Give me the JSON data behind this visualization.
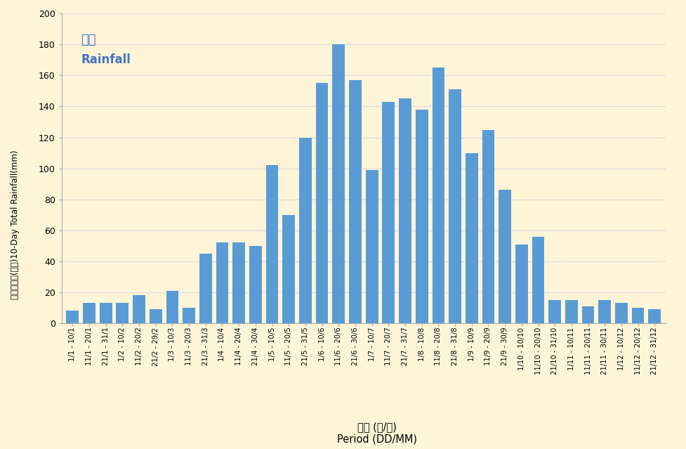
{
  "categories": [
    "1/1 - 10/1",
    "11/1 - 20/1",
    "21/1 - 31/1",
    "1/2 - 10/2",
    "11/2 - 20/2",
    "21/2 - 29/2",
    "1/3 - 10/3",
    "11/3 - 20/3",
    "21/3 - 31/3",
    "1/4 - 10/4",
    "11/4 - 20/4",
    "21/4 - 30/4",
    "1/5 - 10/5",
    "11/5 - 20/5",
    "21/5 - 31/5",
    "1/6 - 10/6",
    "11/6 - 20/6",
    "21/6 - 30/6",
    "1/7 - 10/7",
    "11/7 - 20/7",
    "21/7 - 31/7",
    "1/8 - 10/8",
    "11/8 - 20/8",
    "21/8 - 31/8",
    "1/9 - 10/9",
    "11/9 - 20/9",
    "21/9 - 30/9",
    "1/10 - 10/10",
    "11/10 - 20/10",
    "21/10 - 31/10",
    "1/11 - 10/11",
    "11/11 - 20/11",
    "21/11 - 30/11",
    "1/12 - 10/12",
    "11/12 - 20/12",
    "21/12 - 31/12"
  ],
  "values": [
    8,
    13,
    13,
    13,
    18,
    9,
    21,
    10,
    45,
    52,
    52,
    50,
    102,
    70,
    120,
    155,
    180,
    157,
    99,
    143,
    145,
    138,
    165,
    151,
    110,
    125,
    86,
    51,
    56,
    15,
    15,
    11,
    15,
    13,
    10,
    9
  ],
  "bar_color": "#5b9bd5",
  "background_color": "#fef5d8",
  "title_zh": "雨量",
  "title_en": "Rainfall",
  "xlabel_zh": "期間 (日/月)",
  "xlabel_en": "Period (DD/MM)",
  "ylabel_zh": "十天總雨量(毫米)",
  "ylabel_en": "10-Day Total Rainfall(mm)",
  "ylim": [
    0,
    200
  ],
  "yticks": [
    0,
    20,
    40,
    60,
    80,
    100,
    120,
    140,
    160,
    180,
    200
  ],
  "grid_color": "#d9d9d9",
  "legend_color": "#4472c4",
  "spine_color": "#aaaaaa"
}
